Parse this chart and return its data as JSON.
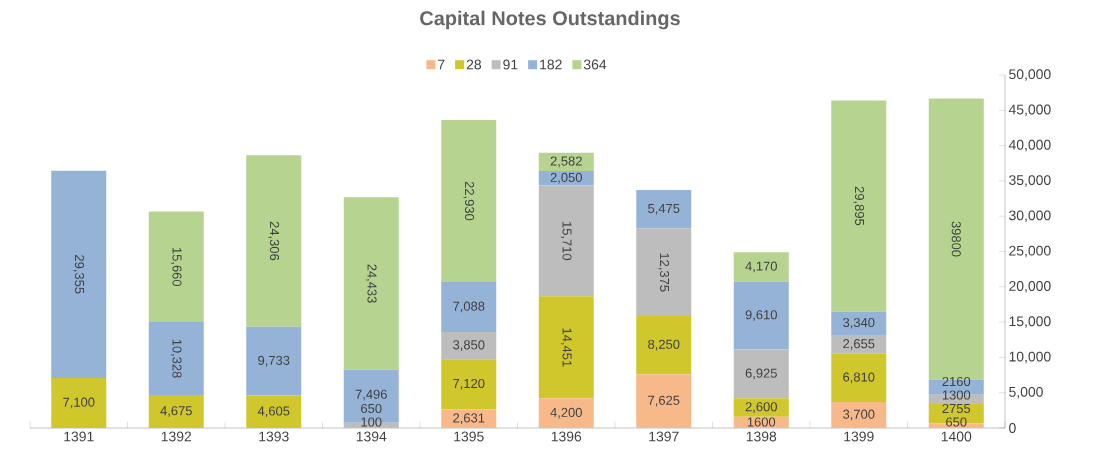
{
  "chart_data": {
    "type": "bar",
    "stacked": true,
    "title": "Capital Notes Outstandings",
    "categories": [
      "1391",
      "1392",
      "1393",
      "1394",
      "1395",
      "1396",
      "1397",
      "1398",
      "1399",
      "1400"
    ],
    "series": [
      {
        "name": "7",
        "color": "#f8b98a",
        "values": [
          null,
          null,
          null,
          null,
          2631,
          4200,
          7625,
          1600,
          3700,
          650
        ],
        "value_labels": [
          null,
          null,
          null,
          null,
          "2,631",
          "4,200",
          "7,625",
          "1600",
          "3,700",
          "650"
        ]
      },
      {
        "name": "28",
        "color": "#cfc72c",
        "values": [
          7100,
          4675,
          4605,
          100,
          7120,
          14451,
          8250,
          2600,
          6810,
          2755
        ],
        "value_labels": [
          "7,100",
          "4,675",
          "4,605",
          "100",
          "7,120",
          "14,451",
          "8,250",
          "2,600",
          "6,810",
          "2755"
        ]
      },
      {
        "name": "91",
        "color": "#bdbdbd",
        "values": [
          null,
          null,
          null,
          650,
          3850,
          15710,
          12375,
          6925,
          2655,
          1300
        ],
        "value_labels": [
          null,
          null,
          null,
          "650",
          "3,850",
          "15,710",
          "12,375",
          "6,925",
          "2,655",
          "1300"
        ]
      },
      {
        "name": "182",
        "color": "#95b3d7",
        "values": [
          29355,
          10328,
          9733,
          7496,
          7088,
          2050,
          5475,
          9610,
          3340,
          2160
        ],
        "value_labels": [
          "29,355",
          "10,328",
          "9,733",
          "7,496",
          "7,088",
          "2,050",
          "5,475",
          "9,610",
          "3,340",
          "2160"
        ]
      },
      {
        "name": "364",
        "color": "#b6d38f",
        "values": [
          null,
          15660,
          24306,
          24433,
          22930,
          2582,
          null,
          4170,
          29895,
          39800
        ],
        "value_labels": [
          null,
          "15,660",
          "24,306",
          "24,433",
          "22,930",
          "2,582",
          null,
          "4,170",
          "29,895",
          "39800"
        ]
      }
    ],
    "ylim": [
      0,
      50000
    ],
    "yticks": [
      0,
      {
        "value": 5000,
        "label": "5,000"
      },
      {
        "value": 10000,
        "label": "10,000"
      },
      {
        "value": 15000,
        "label": "15,000"
      },
      {
        "value": 20000,
        "label": "20,000"
      },
      {
        "value": 25000,
        "label": "25,000"
      },
      {
        "value": 30000,
        "label": "30,000"
      },
      {
        "value": 35000,
        "label": "35,000"
      },
      {
        "value": 40000,
        "label": "40,000"
      },
      {
        "value": 45000,
        "label": "45,000"
      },
      {
        "value": 50000,
        "label": "50,000"
      }
    ],
    "legend": "top",
    "grid": false
  }
}
